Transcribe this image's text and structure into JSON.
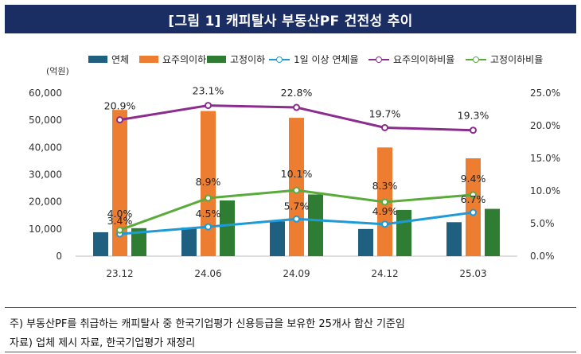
{
  "header": {
    "title": "[그림 1] 캐피탈사 부동산PF 건전성 추이"
  },
  "unit": "(억원)",
  "legend": {
    "s1": "연체",
    "s2": "요주의이하",
    "s3": "고정이하",
    "s4": "1일 이상 연체율",
    "s5": "요주의이하비율",
    "s6": "고정이하비율"
  },
  "notes": {
    "line1": "주) 부동산PF를 취급하는 캐피탈사 중 한국기업평가 신용등급을 보유한 25개사 합산 기준임",
    "line2": "자료) 업체 제시 자료, 한국기업평가 재정리"
  },
  "colors": {
    "title_bg": "#1a2e63",
    "delinquent": "#1f5f7f",
    "precautionary": "#ed7d31",
    "substandard": "#2e7d32",
    "line_delinquency": "#1e9ad6",
    "line_precautionary": "#8b2c8e",
    "line_substandard": "#5aab3c"
  },
  "chart_data": {
    "type": "bar",
    "categories": [
      "23.12",
      "24.06",
      "24.09",
      "24.12",
      "25.03"
    ],
    "series": [
      {
        "name": "연체",
        "values": [
          8800,
          10500,
          12800,
          10000,
          12500
        ]
      },
      {
        "name": "요주의이하",
        "values": [
          53800,
          53400,
          50900,
          40000,
          36000
        ]
      },
      {
        "name": "고정이하",
        "values": [
          10300,
          20500,
          22700,
          17000,
          17400
        ]
      }
    ],
    "line_series": [
      {
        "name": "1일 이상 연체율",
        "values": [
          3.4,
          4.5,
          5.7,
          4.9,
          6.7
        ],
        "labels": [
          "3.4%",
          "4.5%",
          "5.7%",
          "4.9%",
          "6.7%"
        ]
      },
      {
        "name": "요주의이하비율",
        "values": [
          20.9,
          23.1,
          22.8,
          19.7,
          19.3
        ],
        "labels": [
          "20.9%",
          "23.1%",
          "22.8%",
          "19.7%",
          "19.3%"
        ]
      },
      {
        "name": "고정이하비율",
        "values": [
          4.0,
          8.9,
          10.1,
          8.3,
          9.4
        ],
        "labels": [
          "4.0%",
          "8.9%",
          "10.1%",
          "8.3%",
          "9.4%"
        ]
      }
    ],
    "ylim": [
      0,
      60000
    ],
    "yticks": [
      "0",
      "10,000",
      "20,000",
      "30,000",
      "40,000",
      "50,000",
      "60,000"
    ],
    "y2lim": [
      0,
      25
    ],
    "y2ticks": [
      "0.0%",
      "5.0%",
      "10.0%",
      "15.0%",
      "20.0%",
      "25.0%"
    ],
    "legend_position": "top"
  }
}
